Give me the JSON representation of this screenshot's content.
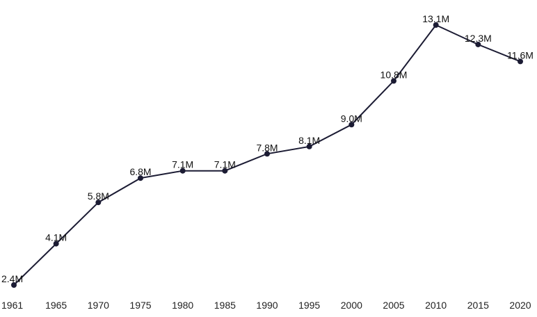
{
  "chart_data": {
    "type": "line",
    "x": [
      1961,
      1965,
      1970,
      1975,
      1980,
      1985,
      1990,
      1995,
      2000,
      2005,
      2010,
      2015,
      2020
    ],
    "tick_labels": [
      "1961",
      "1965",
      "1970",
      "1975",
      "1980",
      "1985",
      "1990",
      "1995",
      "2000",
      "2005",
      "2010",
      "2015",
      "2020"
    ],
    "series": [
      {
        "values": [
          2.4,
          4.1,
          5.8,
          6.8,
          7.1,
          7.1,
          7.8,
          8.1,
          9.0,
          10.8,
          13.1,
          12.3,
          11.6
        ],
        "labels": [
          "2.4M",
          "4.1M",
          "5.8M",
          "6.8M",
          "7.1M",
          "7.1M",
          "7.8M",
          "8.1M",
          "9.0M",
          "10.8M",
          "13.1M",
          "12.3M",
          "11.6M"
        ]
      }
    ],
    "title": "",
    "xlabel": "",
    "ylabel": "",
    "grid": false,
    "legend": "none",
    "colors": {
      "line": "#1b1b33",
      "text": "#222222"
    }
  }
}
